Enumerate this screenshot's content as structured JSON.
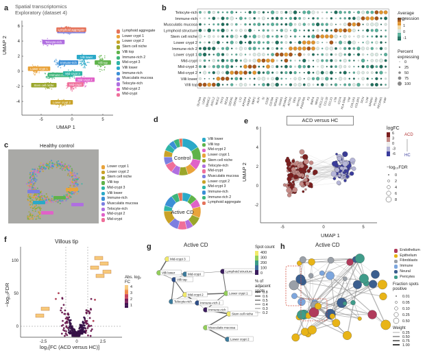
{
  "panels": {
    "a": {
      "letter": "a",
      "title_line1": "Spatial transcriptomics",
      "title_line2": "Exploratory (dataset 4)",
      "xlabel": "UMAP 1",
      "ylabel": "UMAP 2",
      "xticks": [
        "-5",
        "0",
        "5"
      ],
      "yticks": [
        "6",
        "4",
        "2",
        "0",
        "-2",
        "-4"
      ],
      "legend": [
        {
          "label": "Lymphoid aggregate",
          "color": "#e5735a"
        },
        {
          "label": "Lower crypt 1",
          "color": "#e9a33b"
        },
        {
          "label": "Lower crypt 2",
          "color": "#c9a227"
        },
        {
          "label": "Stem cell niche",
          "color": "#9aa62b"
        },
        {
          "label": "Villi top",
          "color": "#5fb34a"
        },
        {
          "label": "Immune-rich 2",
          "color": "#3eb57a"
        },
        {
          "label": "Mid-crypt 3",
          "color": "#2fb5a6"
        },
        {
          "label": "Villi lower",
          "color": "#2aa9c8"
        },
        {
          "label": "Immune-rich",
          "color": "#3b8fd6"
        },
        {
          "label": "Musculatis mucosa",
          "color": "#7c7fe0"
        },
        {
          "label": "Telocyte-rich",
          "color": "#b06fe0"
        },
        {
          "label": "Mid-crypt 2",
          "color": "#e062c8"
        },
        {
          "label": "Mid-crypt",
          "color": "#ef6f9a"
        }
      ],
      "cluster_tags": [
        "Musculatis mucosa",
        "Telocyte-rich",
        "Lymphoid aggregate",
        "Villi lower",
        "Mid-crypt 2",
        "Villi top",
        "Immune-rich",
        "Immune-rich 2",
        "Stem cell niche",
        "Mid-crypt 3",
        "Mid-crypt",
        "Lower crypt 1",
        "Lower crypt 2"
      ]
    },
    "b": {
      "letter": "b",
      "rows": [
        "Telocyte-rich",
        "Immune-rich",
        "Musculatis mucosa",
        "Lymphoid structure",
        "Stem cell niche",
        "Lower crypt 2",
        "Immune-rich 2",
        "Lower crypt 1",
        "Mid-crypt",
        "Mid-crypt 3",
        "Mid-crypt 2",
        "Villi lower",
        "Villi top"
      ],
      "legend_title1": "Average",
      "legend_title2": "expression",
      "expr_ticks": [
        "2",
        "1",
        "0",
        "-1"
      ],
      "pct_title1": "Percent",
      "pct_title2": "expressing",
      "pct_ticks": [
        "0",
        "25",
        "50",
        "75",
        "100"
      ]
    },
    "c": {
      "letter": "c",
      "title": "Healthy control",
      "legend": [
        "Lower crypt 1",
        "Lower crypt 2",
        "Stem cell niche",
        "Villi top",
        "Mid-crypt 3",
        "Villi lower",
        "Immune-rich",
        "Musculatis mucosa",
        "Telocyte-rich",
        "Mid-crypt 2",
        "Mid-crypt"
      ]
    },
    "d": {
      "letter": "d",
      "donut1_label": "Control",
      "donut2_label": "Active CD",
      "legend": [
        {
          "label": "Villi lower",
          "color": "#2aa9c8"
        },
        {
          "label": "Villi top",
          "color": "#5fb34a"
        },
        {
          "label": "Mid-crypt 2",
          "color": "#e062c8"
        },
        {
          "label": "Lower crypt 1",
          "color": "#e9a33b"
        },
        {
          "label": "Stem cell niche",
          "color": "#9aa62b"
        },
        {
          "label": "Telocyte-rich",
          "color": "#b06fe0"
        },
        {
          "label": "Mid-crypt",
          "color": "#ef6f9a"
        },
        {
          "label": "Musculatis mucosa",
          "color": "#7c7fe0"
        },
        {
          "label": "Lower crypt 2",
          "color": "#c9a227"
        },
        {
          "label": "Mid-crypt 3",
          "color": "#2fb5a6"
        },
        {
          "label": "Immune-rich",
          "color": "#3b8fd6"
        },
        {
          "label": "Immune-rich 2",
          "color": "#3eb57a"
        },
        {
          "label": "Lymphoid aggregate",
          "color": "#e5735a"
        }
      ]
    },
    "e": {
      "letter": "e",
      "title": "ACD versus HC",
      "xlabel": "UMAP 1",
      "ylabel": "UMAP 2",
      "xticks": [
        "-5",
        "0",
        "5"
      ],
      "yticks": [
        "6",
        "4",
        "2",
        "0",
        "-2"
      ],
      "logfc_title": "logFC",
      "logfc_ticks": [
        "6",
        "3",
        "0",
        "-3",
        "-6"
      ],
      "up_label": "ACD",
      "down_label": "HC",
      "fdr_title": "−log₁₀FDR",
      "fdr_ticks": [
        "0",
        "2",
        "4",
        "6",
        "8"
      ]
    },
    "f": {
      "letter": "f",
      "title": "Villous tip",
      "ylabel": "−log₁₀FDR",
      "xlabel": "log₂[FC (ACD versus HC)]",
      "xticks": [
        "-2.5",
        "0",
        "2.5"
      ],
      "yticks": [
        "100",
        "50",
        "0"
      ],
      "legend_title1": "Abs. log₂",
      "legend_title2": "FC",
      "legend_ticks": [
        "4",
        "3",
        "2",
        "1"
      ]
    },
    "g": {
      "letter": "g",
      "title": "Active CD",
      "nodes": [
        "Mid-crypt 3",
        "Villi lower",
        "Mid-crypt",
        "Villi top",
        "Lymphoid structure",
        "Mid-crypt 2",
        "Lower crypt 1",
        "Telocyte-rich",
        "Immune-rich 2",
        "Immune-rich",
        "Stem cell niche",
        "Musculatis mucosa",
        "Lower crypt 2"
      ],
      "spot_title": "Spot count",
      "spot_ticks": [
        "400",
        "300",
        "200",
        "100",
        "0"
      ],
      "adj_title1": "% of adjacent",
      "adj_title2": "spots",
      "adj_ticks": [
        "0.8",
        "0.6",
        "0.5",
        "0.4",
        "0.3",
        "0.2"
      ]
    },
    "h": {
      "letter": "h",
      "title": "Active CD",
      "legend": [
        {
          "label": "Endothelium",
          "color": "#b03a5b"
        },
        {
          "label": "Epithelium",
          "color": "#e8b417"
        },
        {
          "label": "Fibroblasts",
          "color": "#9aa0a8"
        },
        {
          "label": "Immune",
          "color": "#7da6dd"
        },
        {
          "label": "Neural",
          "color": "#3b5f8f"
        },
        {
          "label": "Pericytes",
          "color": "#3f9c8a"
        }
      ],
      "frac_title1": "Fraction spots",
      "frac_title2": "positive",
      "frac_ticks": [
        "0.01",
        "0.05",
        "0.10",
        "0.25",
        "0.50"
      ],
      "weight_title": "Weight",
      "weight_ticks": [
        "0.25",
        "0.50",
        "0.75",
        "1.00"
      ]
    }
  }
}
